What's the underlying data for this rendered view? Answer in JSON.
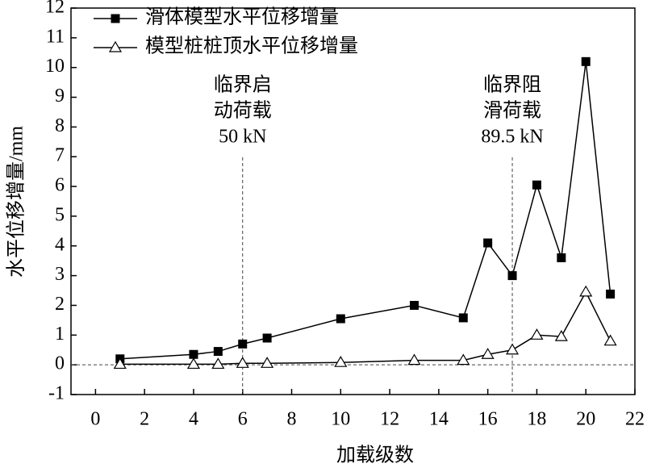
{
  "chart_data": {
    "type": "line",
    "x_label": "加载级数",
    "y_label": "水平位移增量/mm",
    "x": [
      1,
      4,
      5,
      6,
      7,
      10,
      13,
      15,
      16,
      17,
      18,
      19,
      20,
      21
    ],
    "series": [
      {
        "name": "滑体模型水平位移增量",
        "color": "#000000",
        "marker": "square",
        "values": [
          0.2,
          0.35,
          0.45,
          0.7,
          0.9,
          1.55,
          2.0,
          1.58,
          4.1,
          3.0,
          6.05,
          3.6,
          10.2,
          2.38
        ]
      },
      {
        "name": "模型桩桩顶水平位移增量",
        "color": "#000000",
        "marker": "triangle",
        "values": [
          0.02,
          0.02,
          0.02,
          0.05,
          0.05,
          0.08,
          0.15,
          0.15,
          0.35,
          0.5,
          1.0,
          0.95,
          2.45,
          0.8
        ]
      }
    ],
    "xlim": [
      -1,
      22
    ],
    "ylim": [
      -1,
      12
    ],
    "xticks": [
      0,
      2,
      4,
      6,
      8,
      10,
      12,
      14,
      16,
      18,
      20,
      22
    ],
    "yticks": [
      -1,
      0,
      1,
      2,
      3,
      4,
      5,
      6,
      7,
      8,
      9,
      10,
      11,
      12
    ],
    "hlines": [
      0
    ],
    "vlines": [
      6,
      17
    ],
    "annotations": [
      {
        "x": 6,
        "lines": [
          "临界启",
          "动荷载",
          "50 kN"
        ]
      },
      {
        "x": 17,
        "lines": [
          "临界阻",
          "滑荷载",
          "89.5 kN"
        ]
      }
    ],
    "legend": "upper-left"
  }
}
